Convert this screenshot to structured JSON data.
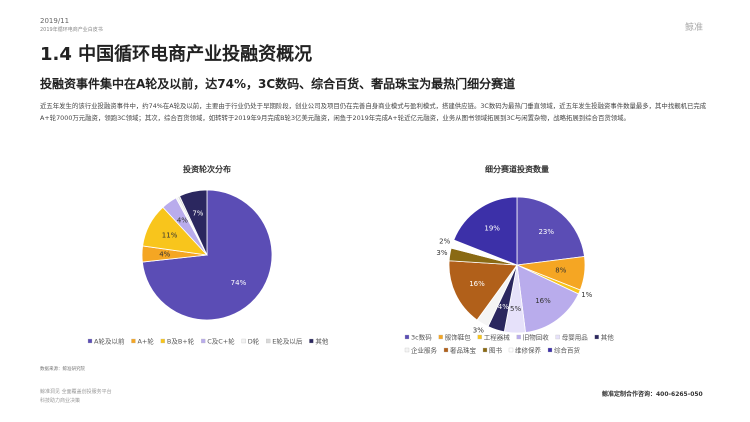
{
  "header": {
    "date": "2019/11",
    "report": "2019年循环电商产业白皮书",
    "logo": "鲸准"
  },
  "title": "1.4 中国循环电商产业投融资概况",
  "headline": "投融资事件集中在A轮及以前，达74%，3C数码、综合百货、奢品珠宝为最热门细分赛道",
  "paragraph": "近五年发生的该行业投融资事件中，约74%在A轮及以前，主要由于行业仍处于早期阶段，创业公司及项目仍在完善自身商业模式与盈利模式，搭建供应链。3C数码为最热门垂直领域，近五年发生投融资事件数量最多，其中找靓机已完成A+轮7000万元融资，领跑3C领域；其次，综合百货领域，如转转于2019年9月完成B轮3亿美元融资，闲鱼于2019年完成A+轮近亿元融资，业务从图书领域拓展到3C与闲置杂物，战略拓展到综合百货领域。",
  "source": "数据来源：鲸准研究院",
  "footer": {
    "left1": "鲸准洞见 全面覆盖创投服务平台",
    "left2": "科技助力商业决策",
    "right": "鲸准定制合作咨询：400-6265-050"
  },
  "chart_data": [
    {
      "type": "pie",
      "title": "投资轮次分布",
      "categories": [
        "A轮及以前",
        "A+轮",
        "B及B+轮",
        "C及C+轮",
        "D轮",
        "E轮及以后",
        "其他"
      ],
      "values": [
        74,
        4,
        11,
        4,
        0.5,
        0.5,
        7
      ],
      "value_labels": [
        "74%",
        "4%",
        "11%",
        "4%",
        null,
        null,
        "7%"
      ],
      "colors": [
        "#5b4db5",
        "#f5a623",
        "#f8c51c",
        "#b9acec",
        "#f2f2f2",
        "#d9d9d9",
        "#2b275f"
      ]
    },
    {
      "type": "pie",
      "title": "细分赛道投资数量",
      "categories": [
        "3c数码",
        "服饰鞋包",
        "工程器械",
        "旧物回收",
        "母婴用品",
        "其他",
        "企业服务",
        "奢品珠宝",
        "图书",
        "维修保养",
        "综合百货"
      ],
      "values": [
        23,
        8,
        1,
        16,
        5,
        4,
        3,
        16,
        3,
        2,
        19
      ],
      "value_labels": [
        "23%",
        "8%",
        "1%",
        "16%",
        "5%",
        "4%",
        "3%",
        "16%",
        "3%",
        "2%",
        "19%"
      ],
      "colors": [
        "#5b4db5",
        "#f5a623",
        "#f8c51c",
        "#b9acec",
        "#e6e1fa",
        "#2b275f",
        "#f4f4f4",
        "#b1601a",
        "#8a6a14",
        "#ffffff",
        "#3c30a8"
      ]
    }
  ]
}
